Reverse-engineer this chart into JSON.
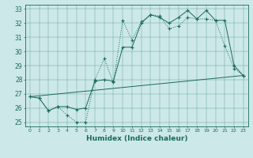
{
  "xlabel": "Humidex (Indice chaleur)",
  "xlim": [
    -0.5,
    23.5
  ],
  "ylim": [
    24.7,
    33.3
  ],
  "yticks": [
    25,
    26,
    27,
    28,
    29,
    30,
    31,
    32,
    33
  ],
  "xticks": [
    0,
    1,
    2,
    3,
    4,
    5,
    6,
    7,
    8,
    9,
    10,
    11,
    12,
    13,
    14,
    15,
    16,
    17,
    18,
    19,
    20,
    21,
    22,
    23
  ],
  "bg_color": "#cce8e8",
  "line_color": "#1a6b5a",
  "line1_x": [
    0,
    1,
    2,
    3,
    4,
    5,
    6,
    7,
    8,
    9,
    10,
    11,
    12,
    13,
    14,
    15,
    16,
    17,
    18,
    19,
    20,
    21,
    22,
    23
  ],
  "line1_y": [
    26.8,
    26.7,
    25.8,
    26.1,
    25.5,
    25.0,
    25.0,
    28.0,
    29.5,
    27.8,
    32.2,
    30.8,
    32.1,
    32.6,
    32.5,
    31.6,
    31.8,
    32.4,
    32.3,
    32.3,
    32.2,
    30.4,
    28.8,
    28.3
  ],
  "line2_x": [
    0,
    1,
    2,
    3,
    4,
    5,
    6,
    7,
    8,
    9,
    10,
    11,
    12,
    13,
    14,
    15,
    16,
    17,
    18,
    19,
    20,
    21,
    22,
    23
  ],
  "line2_y": [
    26.8,
    26.7,
    25.8,
    26.1,
    26.1,
    25.9,
    26.0,
    27.9,
    28.0,
    27.9,
    30.3,
    30.3,
    32.0,
    32.6,
    32.4,
    32.0,
    32.4,
    32.9,
    32.3,
    32.9,
    32.2,
    32.2,
    29.0,
    28.3
  ],
  "line3_x": [
    0,
    23
  ],
  "line3_y": [
    26.8,
    28.3
  ]
}
